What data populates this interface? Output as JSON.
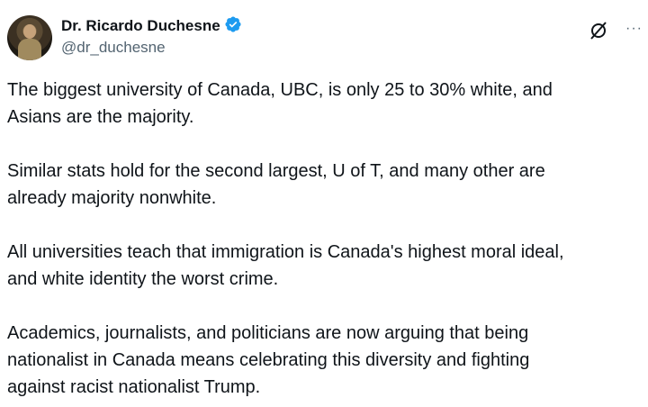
{
  "author": {
    "name": "Dr. Ricardo Duchesne",
    "handle": "@dr_duchesne",
    "verified": true,
    "verified_color": "#1d9bf0"
  },
  "actions": {
    "grok_icon": "grok-icon",
    "more_label": "···"
  },
  "paragraphs": [
    [
      "The biggest university of Canada, UBC, is only 25 to 30% white, and",
      "Asians are the majority."
    ],
    [
      "Similar stats hold for the second largest, U of T, and many other are",
      "already majority nonwhite."
    ],
    [
      "All universities teach that immigration is Canada's highest moral ideal,",
      "and white identity the worst crime."
    ],
    [
      "Academics, journalists, and politicians are now arguing that being",
      "nationalist in Canada means celebrating this diversity and fighting",
      "against racist nationalist Trump."
    ]
  ]
}
